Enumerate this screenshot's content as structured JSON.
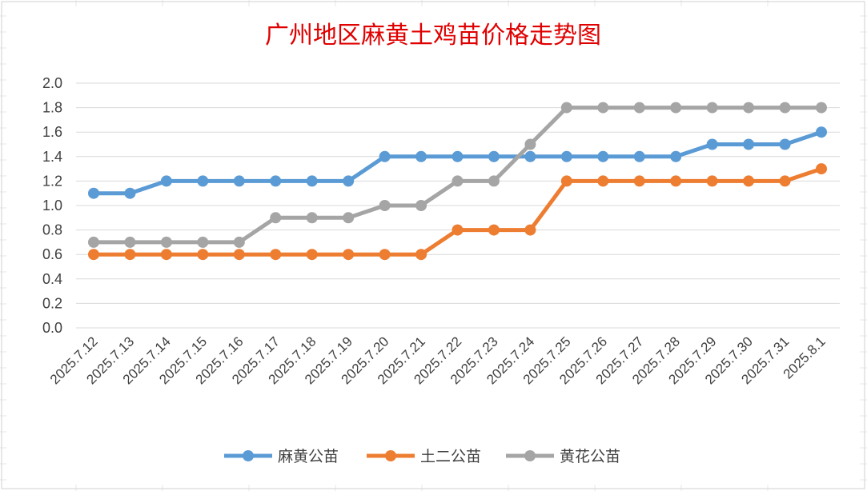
{
  "chart_data": {
    "type": "line",
    "title": "广州地区麻黄土鸡苗价格走势图",
    "xlabel": "",
    "ylabel": "",
    "ylim": [
      0,
      2.0
    ],
    "yticks": [
      "0.0",
      "0.2",
      "0.4",
      "0.6",
      "0.8",
      "1.0",
      "1.2",
      "1.4",
      "1.6",
      "1.8",
      "2.0"
    ],
    "grid": true,
    "legend": "bottom",
    "categories": [
      "2025.7.12",
      "2025.7.13",
      "2025.7.14",
      "2025.7.15",
      "2025.7.16",
      "2025.7.17",
      "2025.7.18",
      "2025.7.19",
      "2025.7.20",
      "2025.7.21",
      "2025.7.22",
      "2025.7.23",
      "2025.7.24",
      "2025.7.25",
      "2025.7.26",
      "2025.7.27",
      "2025.7.28",
      "2025.7.29",
      "2025.7.30",
      "2025.7.31",
      "2025.8.1"
    ],
    "series": [
      {
        "name": "麻黄公苗",
        "color": "#5b9bd5",
        "values": [
          1.1,
          1.1,
          1.2,
          1.2,
          1.2,
          1.2,
          1.2,
          1.2,
          1.4,
          1.4,
          1.4,
          1.4,
          1.4,
          1.4,
          1.4,
          1.4,
          1.4,
          1.5,
          1.5,
          1.5,
          1.6
        ]
      },
      {
        "name": "土二公苗",
        "color": "#ed7d31",
        "values": [
          0.6,
          0.6,
          0.6,
          0.6,
          0.6,
          0.6,
          0.6,
          0.6,
          0.6,
          0.6,
          0.8,
          0.8,
          0.8,
          1.2,
          1.2,
          1.2,
          1.2,
          1.2,
          1.2,
          1.2,
          1.3
        ]
      },
      {
        "name": "黄花公苗",
        "color": "#a5a5a5",
        "values": [
          0.7,
          0.7,
          0.7,
          0.7,
          0.7,
          0.9,
          0.9,
          0.9,
          1.0,
          1.0,
          1.2,
          1.2,
          1.5,
          1.8,
          1.8,
          1.8,
          1.8,
          1.8,
          1.8,
          1.8,
          1.8
        ]
      }
    ]
  }
}
